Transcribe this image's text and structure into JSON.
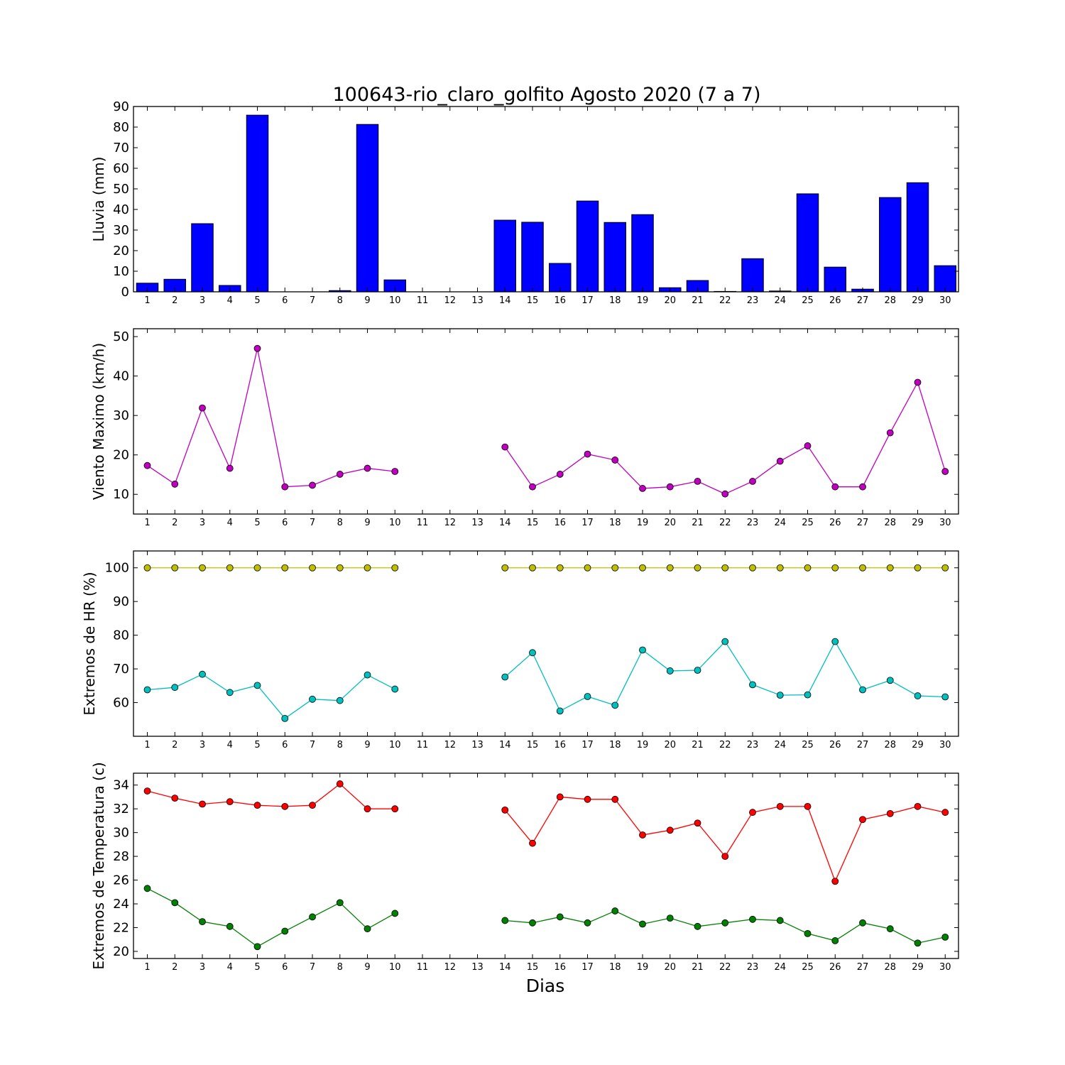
{
  "chart_data": {
    "title": "100643-rio_claro_golfito Agosto 2020  (7 a 7)",
    "xlabel": "Dias",
    "categories": [
      "1",
      "2",
      "3",
      "4",
      "5",
      "6",
      "7",
      "8",
      "9",
      "10",
      "11",
      "12",
      "13",
      "14",
      "15",
      "16",
      "17",
      "18",
      "19",
      "20",
      "21",
      "22",
      "23",
      "24",
      "25",
      "26",
      "27",
      "28",
      "29",
      "30"
    ],
    "panels": [
      {
        "type": "bar",
        "ylabel": "Lluvia (mm)",
        "ylim": [
          0,
          90
        ],
        "yticks": [
          0,
          10,
          20,
          30,
          40,
          50,
          60,
          70,
          80,
          90
        ],
        "series": [
          {
            "color": "#0000ff",
            "values": [
              4.2,
              6.1,
              33.1,
              3.1,
              85.8,
              0,
              0,
              0.6,
              81.3,
              5.8,
              null,
              null,
              null,
              34.8,
              33.8,
              13.8,
              44.1,
              33.7,
              37.5,
              2.0,
              5.5,
              0.2,
              16.1,
              0.4,
              47.6,
              12.0,
              1.3,
              45.8,
              53.0,
              12.7
            ]
          }
        ]
      },
      {
        "type": "line",
        "ylabel": "Viento Maximo (km/h)",
        "ylim": [
          5,
          52
        ],
        "yticks": [
          10,
          20,
          30,
          40,
          50
        ],
        "series": [
          {
            "color": "#bf00bf",
            "values": [
              17.3,
              12.6,
              31.9,
              16.6,
              47.0,
              11.9,
              12.3,
              15.1,
              16.6,
              15.8,
              null,
              null,
              null,
              22.0,
              11.9,
              15.1,
              20.2,
              18.7,
              11.5,
              11.9,
              13.3,
              10.1,
              13.3,
              18.4,
              22.3,
              11.9,
              11.9,
              25.6,
              38.4,
              15.8
            ]
          }
        ]
      },
      {
        "type": "line",
        "ylabel": "Extremos de HR (%)",
        "ylim": [
          50,
          105
        ],
        "yticks": [
          60,
          70,
          80,
          90,
          100
        ],
        "series": [
          {
            "color": "#bfbf00",
            "values": [
              100,
              100,
              100,
              100,
              100,
              100,
              100,
              100,
              100,
              100,
              null,
              null,
              null,
              100,
              100,
              100,
              100,
              100,
              100,
              100,
              100,
              100,
              100,
              100,
              100,
              100,
              100,
              100,
              100,
              100
            ]
          },
          {
            "color": "#00bfbf",
            "values": [
              63.8,
              64.5,
              68.4,
              63.0,
              65.1,
              55.3,
              61.0,
              60.6,
              68.2,
              64.0,
              null,
              null,
              null,
              67.6,
              74.8,
              57.5,
              61.8,
              59.2,
              75.6,
              69.4,
              69.6,
              78.1,
              65.3,
              62.2,
              62.3,
              78.1,
              63.8,
              66.6,
              62.0,
              61.7
            ]
          }
        ]
      },
      {
        "type": "line",
        "ylabel": "Extremos de Temperatura (c)",
        "ylim": [
          19.4,
          35.0
        ],
        "yticks": [
          20,
          22,
          24,
          26,
          28,
          30,
          32,
          34
        ],
        "series": [
          {
            "color": "#ff0000",
            "values": [
              33.5,
              32.9,
              32.4,
              32.6,
              32.3,
              32.2,
              32.3,
              34.1,
              32.0,
              32.0,
              null,
              null,
              null,
              31.9,
              29.1,
              33.0,
              32.8,
              32.8,
              29.8,
              30.2,
              30.8,
              28.0,
              31.7,
              32.2,
              32.2,
              25.9,
              31.1,
              31.6,
              32.2,
              31.7
            ]
          },
          {
            "color": "#008000",
            "values": [
              25.3,
              24.1,
              22.5,
              22.1,
              20.4,
              21.7,
              22.9,
              24.1,
              21.9,
              23.2,
              null,
              null,
              null,
              22.6,
              22.4,
              22.9,
              22.4,
              23.4,
              22.3,
              22.8,
              22.1,
              22.4,
              22.7,
              22.6,
              21.5,
              20.9,
              22.4,
              21.9,
              20.7,
              21.2
            ]
          }
        ]
      }
    ]
  }
}
